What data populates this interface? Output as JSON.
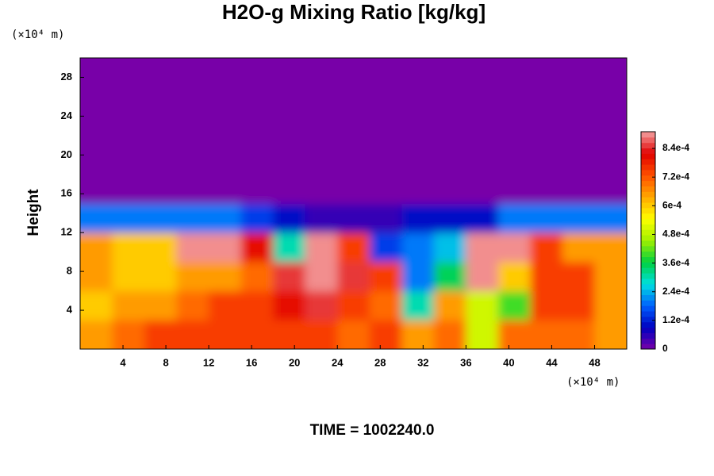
{
  "chart_data": {
    "type": "contour",
    "title": "H2O-g Mixing Ratio [kg/kg]",
    "ylabel": "Height",
    "x_unit": "(×10⁴ m)",
    "y_unit": "(×10⁴ m)",
    "footer": "TIME = 1002240.0",
    "xlim": [
      0,
      51
    ],
    "ylim": [
      0,
      30
    ],
    "xticks": [
      4,
      8,
      12,
      16,
      20,
      24,
      28,
      32,
      36,
      40,
      44,
      48
    ],
    "yticks": [
      4,
      8,
      12,
      16,
      20,
      24,
      28
    ],
    "x": [
      1.5,
      4.5,
      7.5,
      10.5,
      13.5,
      16.5,
      19.5,
      22.5,
      25.5,
      28.5,
      31.5,
      34.5,
      37.5,
      40.5,
      43.5,
      46.5,
      49.5
    ],
    "y": [
      1.5,
      4.5,
      7.5,
      10.5,
      13.5,
      16.5,
      19.5,
      22.5,
      25.5,
      28.5
    ],
    "z": [
      [
        0.00065,
        0.0007,
        0.00075,
        0.00075,
        0.00075,
        0.00075,
        0.00075,
        0.00075,
        0.0007,
        0.00075,
        0.00065,
        0.0007,
        0.0005,
        0.0007,
        0.0007,
        0.0007,
        0.00065
      ],
      [
        0.0006,
        0.00065,
        0.00065,
        0.0007,
        0.00075,
        0.00075,
        0.0008,
        0.00085,
        0.00075,
        0.0007,
        0.0003,
        0.00065,
        0.0005,
        0.0004,
        0.00075,
        0.00075,
        0.00065
      ],
      [
        0.00065,
        0.0006,
        0.0006,
        0.00065,
        0.00065,
        0.0007,
        0.00085,
        0.0009,
        0.00085,
        0.00075,
        0.0002,
        0.00035,
        0.0009,
        0.0006,
        0.00075,
        0.00075,
        0.00065
      ],
      [
        0.00065,
        0.0006,
        0.0006,
        0.0009,
        0.0009,
        0.0008,
        0.0003,
        0.0009,
        0.00075,
        0.00015,
        0.0002,
        0.00025,
        0.0009,
        0.0009,
        0.00075,
        0.00065,
        0.00065
      ],
      [
        0.0002,
        0.0002,
        0.0002,
        0.0002,
        0.0002,
        0.00015,
        0.0001,
        5e-05,
        5e-05,
        5e-05,
        0.0001,
        0.0001,
        0.0001,
        0.0002,
        0.0002,
        0.0002,
        0.0002
      ],
      [
        0,
        0,
        0,
        0,
        0,
        0,
        0,
        0,
        0,
        0,
        0,
        0,
        0,
        0,
        0,
        0,
        0
      ],
      [
        0,
        0,
        0,
        0,
        0,
        0,
        0,
        0,
        0,
        0,
        0,
        0,
        0,
        0,
        0,
        0,
        0
      ],
      [
        0,
        0,
        0,
        0,
        0,
        0,
        0,
        0,
        0,
        0,
        0,
        0,
        0,
        0,
        0,
        0,
        0
      ],
      [
        0,
        0,
        0,
        0,
        0,
        0,
        0,
        0,
        0,
        0,
        0,
        0,
        0,
        0,
        0,
        0,
        0
      ],
      [
        0,
        0,
        0,
        0,
        0,
        0,
        0,
        0,
        0,
        0,
        0,
        0,
        0,
        0,
        0,
        0,
        0
      ]
    ],
    "clim": [
      0,
      0.00091
    ],
    "cticks": [
      0,
      {
        "value": 0.00012,
        "label": "1.2e-4"
      },
      {
        "value": 0.00024,
        "label": "2.4e-4"
      },
      {
        "value": 0.00036,
        "label": "3.6e-4"
      },
      {
        "value": 0.00048,
        "label": "4.8e-4"
      },
      {
        "value": 0.0006,
        "label": "6e-4"
      },
      {
        "value": 0.00072,
        "label": "7.2e-4"
      },
      {
        "value": 0.00084,
        "label": "8.4e-4"
      }
    ],
    "colormap": [
      "#7800a8",
      "#0000c0",
      "#0060ff",
      "#00e0e0",
      "#00d040",
      "#a0f000",
      "#ffff00",
      "#ffa800",
      "#ff5000",
      "#e00000",
      "#f4a0a0"
    ]
  }
}
